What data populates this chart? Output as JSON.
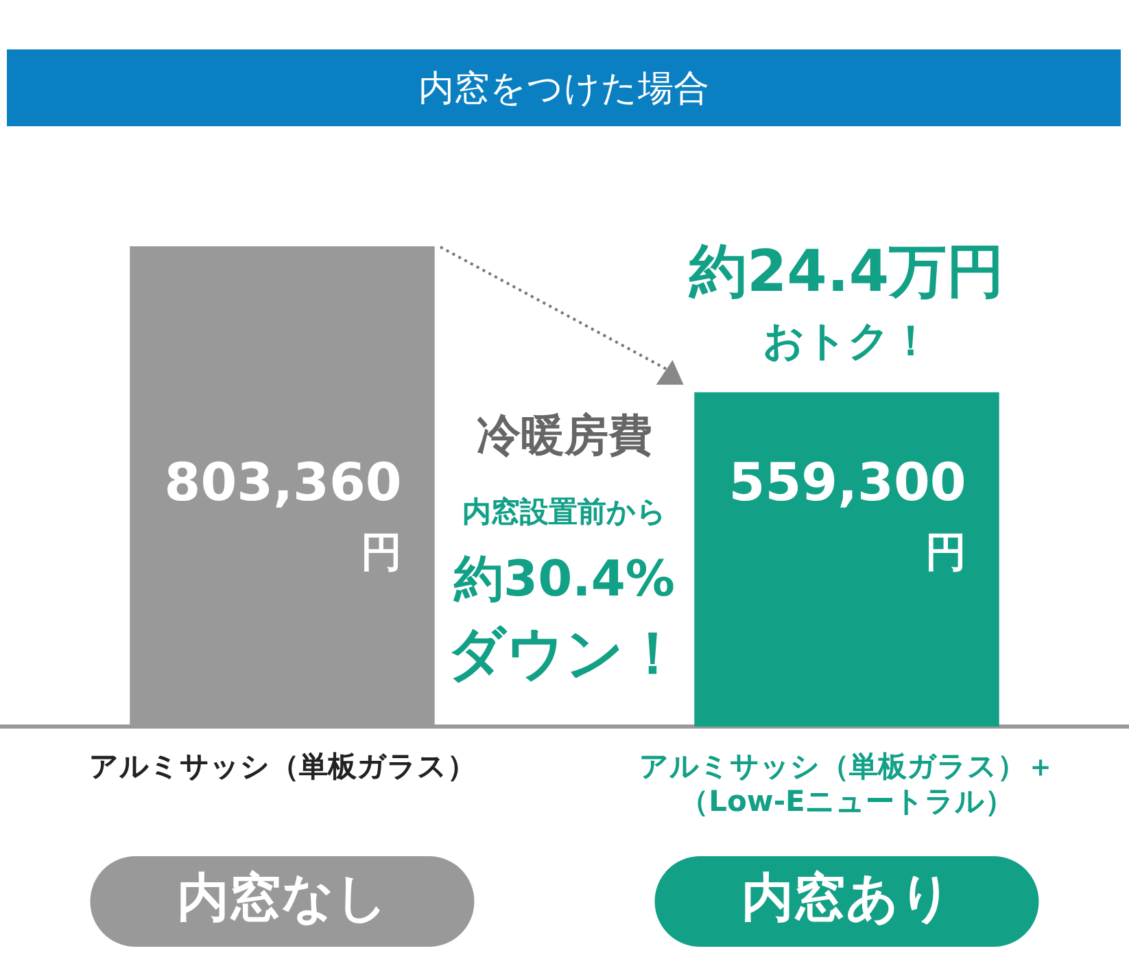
{
  "chart_data": {
    "type": "bar",
    "title": "内窓をつけた場合",
    "categories": [
      "アルミサッシ（単板ガラス）",
      "アルミサッシ（単板ガラス）＋（Low-Eニュートラル）"
    ],
    "values": [
      803360,
      559300
    ],
    "colors": [
      "#999999",
      "#12a087"
    ],
    "value_labels": [
      "803,360\n円",
      "559,300\n円"
    ],
    "annotations": [
      "冷暖房費",
      "内窓設置前から",
      "約30.4%",
      "ダウン！",
      "約24.4万円",
      "おトク！",
      "内窓なし",
      "内窓あり"
    ],
    "grid": false,
    "legend": false
  }
}
